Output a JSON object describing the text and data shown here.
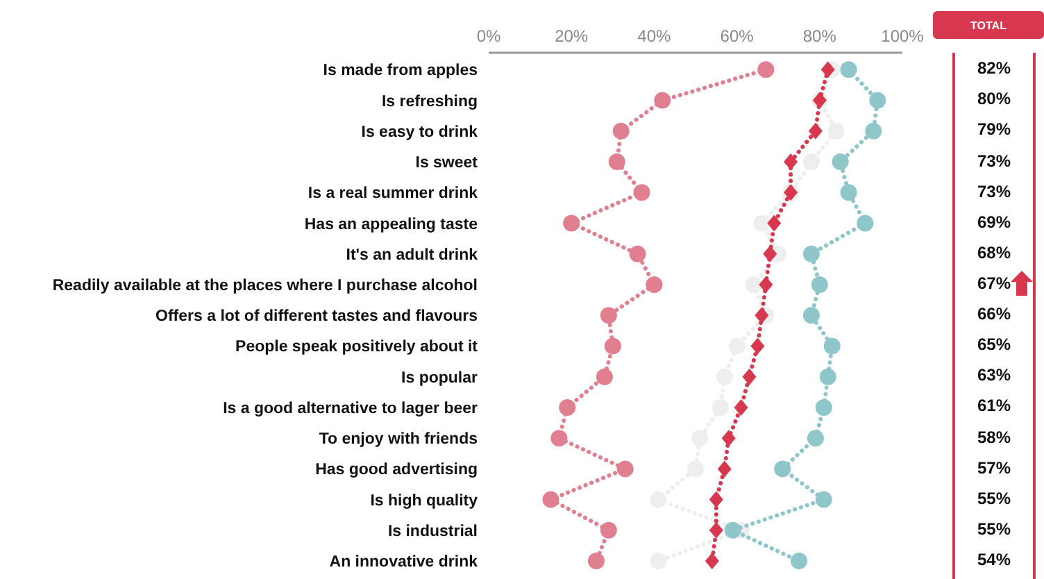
{
  "chart_data": {
    "type": "line",
    "orientation": "horizontal",
    "categories": [
      "Is made from apples",
      "Is refreshing",
      "Is easy to drink",
      "Is sweet",
      "Is a real summer drink",
      "Has an appealing taste",
      "It's an adult drink",
      "Readily available at the places where I purchase alcohol",
      "Offers a lot of different tastes and flavours",
      "People speak positively about it",
      "Is popular",
      "Is a good alternative to lager beer",
      "To enjoy with friends",
      "Has good advertising",
      "Is high quality",
      "Is industrial",
      "An innovative drink"
    ],
    "xlim": [
      0,
      100
    ],
    "xticks": [
      {
        "value": 0,
        "label": "0%"
      },
      {
        "value": 20,
        "label": "20%"
      },
      {
        "value": 40,
        "label": "40%"
      },
      {
        "value": 60,
        "label": "60%"
      },
      {
        "value": 80,
        "label": "80%"
      },
      {
        "value": 100,
        "label": "100%"
      }
    ],
    "grid": false,
    "line_style": "dotted",
    "series": [
      {
        "color": "#e07f8f",
        "marker": "circle",
        "values": [
          67,
          42,
          32,
          31,
          37,
          20,
          36,
          40,
          29,
          30,
          28,
          19,
          17,
          33,
          15,
          29,
          26
        ]
      },
      {
        "color": "#eeeeee",
        "marker": "circle",
        "values": [
          83,
          80,
          84,
          78,
          73,
          66,
          70,
          64,
          67,
          60,
          57,
          56,
          51,
          50,
          41,
          61,
          41
        ]
      },
      {
        "name": "TOTAL",
        "color": "#d8384f",
        "marker": "diamond",
        "values": [
          82,
          80,
          79,
          73,
          73,
          69,
          68,
          67,
          66,
          65,
          63,
          61,
          58,
          57,
          55,
          55,
          54
        ],
        "value_labels": [
          "82%",
          "80%",
          "79%",
          "73%",
          "73%",
          "69%",
          "68%",
          "67%",
          "66%",
          "65%",
          "63%",
          "61%",
          "58%",
          "57%",
          "55%",
          "55%",
          "54%"
        ]
      },
      {
        "color": "#8ec6c9",
        "marker": "circle",
        "values": [
          87,
          94,
          93,
          85,
          87,
          91,
          78,
          80,
          78,
          83,
          82,
          81,
          79,
          71,
          81,
          59,
          75
        ]
      }
    ]
  }
}
